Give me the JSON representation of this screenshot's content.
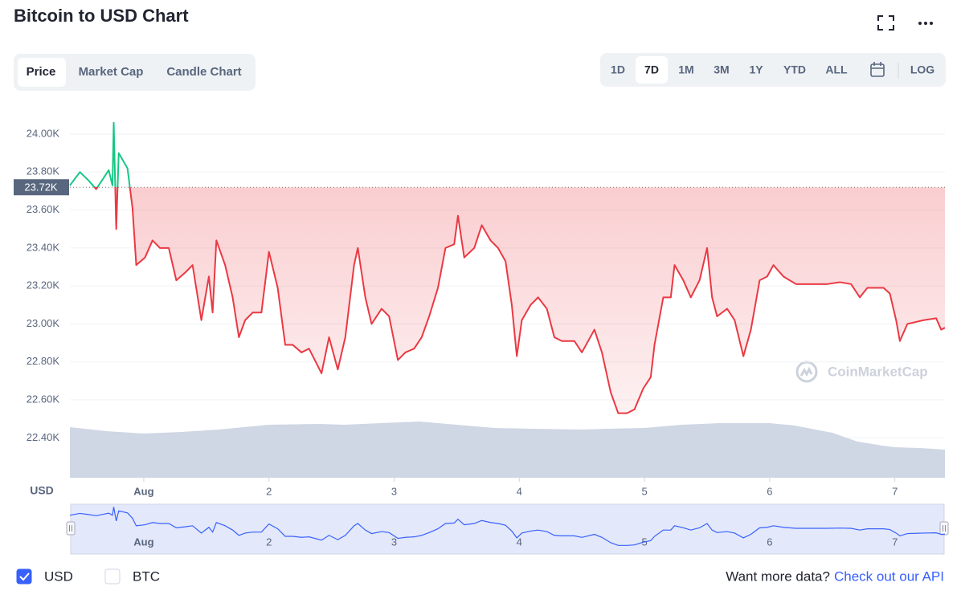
{
  "chart_data": {
    "type": "line",
    "title": "Bitcoin to USD Chart",
    "tabs": [
      "Price",
      "Market Cap",
      "Candle Chart"
    ],
    "active_tab": 0,
    "ranges": [
      "1D",
      "7D",
      "1M",
      "3M",
      "1Y",
      "YTD",
      "ALL"
    ],
    "active_range": 1,
    "scale_option": "LOG",
    "y_unit_label": "USD",
    "watermark": "CoinMarketCap",
    "up_color": "#16c784",
    "down_color": "#ea3943",
    "grid": true,
    "reference": {
      "value": 23720,
      "label": "23.72K"
    },
    "xlim": [
      0.41,
      7.4
    ],
    "xticks": [
      {
        "value": 1,
        "label": "Aug"
      },
      2,
      3,
      4,
      5,
      6,
      7
    ],
    "ylim": [
      22190,
      24165
    ],
    "yticks": [
      {
        "value": 22400,
        "label": "22.40K"
      },
      {
        "value": 22600,
        "label": "22.60K"
      },
      {
        "value": 22800,
        "label": "22.80K"
      },
      {
        "value": 23000,
        "label": "23.00K"
      },
      {
        "value": 23200,
        "label": "23.20K"
      },
      {
        "value": 23400,
        "label": "23.40K"
      },
      {
        "value": 23600,
        "label": "23.60K"
      },
      {
        "value": 23800,
        "label": "23.80K"
      },
      {
        "value": 24000,
        "label": "24.00K"
      }
    ],
    "x": [
      0.41,
      0.49,
      0.56,
      0.62,
      0.72,
      0.75,
      0.76,
      0.78,
      0.8,
      0.87,
      0.91,
      0.94,
      1.01,
      1.07,
      1.13,
      1.2,
      1.26,
      1.33,
      1.39,
      1.46,
      1.52,
      1.55,
      1.58,
      1.65,
      1.71,
      1.76,
      1.81,
      1.87,
      1.94,
      2.0,
      2.07,
      2.13,
      2.19,
      2.26,
      2.32,
      2.42,
      2.48,
      2.55,
      2.61,
      2.68,
      2.71,
      2.77,
      2.82,
      2.9,
      2.96,
      3.03,
      3.09,
      3.16,
      3.22,
      3.28,
      3.35,
      3.41,
      3.48,
      3.51,
      3.56,
      3.64,
      3.7,
      3.77,
      3.83,
      3.89,
      3.94,
      3.98,
      4.02,
      4.09,
      4.15,
      4.22,
      4.28,
      4.34,
      4.44,
      4.5,
      4.6,
      4.66,
      4.73,
      4.79,
      4.86,
      4.92,
      4.99,
      5.05,
      5.08,
      5.15,
      5.21,
      5.24,
      5.31,
      5.37,
      5.44,
      5.5,
      5.54,
      5.58,
      5.66,
      5.72,
      5.79,
      5.85,
      5.92,
      5.98,
      6.03,
      6.11,
      6.21,
      6.33,
      6.46,
      6.56,
      6.65,
      6.72,
      6.78,
      6.91,
      6.96,
      7.01,
      7.04,
      7.1,
      7.23,
      7.33,
      7.37,
      7.4
    ],
    "series": [
      {
        "name": "USD",
        "checked": true,
        "color": "#ea3943",
        "values": [
          23730,
          23800,
          23755,
          23710,
          23810,
          23730,
          24060,
          23500,
          23900,
          23820,
          23610,
          23310,
          23350,
          23440,
          23400,
          23400,
          23230,
          23270,
          23310,
          23020,
          23250,
          23060,
          23440,
          23310,
          23140,
          22930,
          23020,
          23060,
          23060,
          23380,
          23190,
          22890,
          22890,
          22850,
          22870,
          22740,
          22930,
          22760,
          22930,
          23310,
          23400,
          23140,
          23000,
          23080,
          23040,
          22810,
          22850,
          22870,
          22930,
          23040,
          23190,
          23400,
          23420,
          23570,
          23350,
          23400,
          23520,
          23440,
          23400,
          23330,
          23100,
          22830,
          23020,
          23100,
          23140,
          23080,
          22930,
          22910,
          22910,
          22850,
          22970,
          22850,
          22640,
          22530,
          22530,
          22550,
          22660,
          22720,
          22890,
          23140,
          23140,
          23310,
          23230,
          23140,
          23230,
          23400,
          23140,
          23040,
          23080,
          23020,
          22830,
          22970,
          23230,
          23250,
          23310,
          23250,
          23210,
          23210,
          23210,
          23220,
          23210,
          23140,
          23190,
          23190,
          23160,
          23020,
          22910,
          23000,
          23020,
          23030,
          22970,
          22980
        ]
      }
    ],
    "other_toggle": {
      "name": "BTC",
      "checked": false
    },
    "volume": {
      "color": "#cfd6e4",
      "x": [
        0.41,
        0.7,
        1.0,
        1.3,
        1.6,
        2.0,
        2.4,
        2.6,
        3.2,
        3.5,
        3.8,
        4.1,
        4.5,
        4.7,
        5.0,
        5.3,
        5.6,
        6.0,
        6.2,
        6.5,
        6.7,
        6.9,
        7.0,
        7.2,
        7.4
      ],
      "values": [
        63,
        58,
        55,
        57,
        60,
        66,
        67,
        66,
        70,
        66,
        62,
        61,
        60,
        61,
        62,
        66,
        68,
        68,
        65,
        56,
        45,
        40,
        38,
        37,
        35
      ]
    },
    "footer": {
      "prompt": "Want more data?",
      "link": "Check out our API"
    }
  }
}
